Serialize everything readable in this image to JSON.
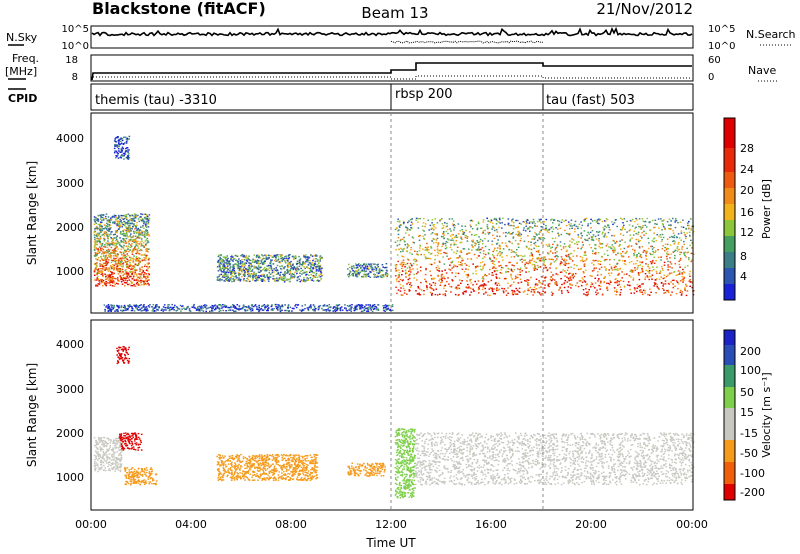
{
  "header": {
    "station": "Blackstone (fitACF)",
    "beam": "Beam 13",
    "date": "21/Nov/2012"
  },
  "noise_panel": {
    "left_label": "N.Sky",
    "right_label": "N.Search",
    "left_ticks": [
      "10^5",
      "10^0"
    ],
    "right_ticks": [
      "10^5",
      "10^0"
    ]
  },
  "freq_panel": {
    "left_label_1": "Freq.",
    "left_label_2": "[MHz]",
    "right_label": "Nave",
    "left_ticks": [
      "18",
      "8"
    ],
    "right_ticks": [
      "60",
      "0"
    ]
  },
  "cpid_panel": {
    "label": "CPID",
    "modes": [
      {
        "name": "themis (tau) -3310",
        "start_hour": 0,
        "end_hour": 12
      },
      {
        "name": "rbsp 200",
        "start_hour": 12,
        "end_hour": 18
      },
      {
        "name": "tau (fast) 503",
        "start_hour": 18,
        "end_hour": 24
      }
    ]
  },
  "chart_data": [
    {
      "type": "heatmap",
      "parameter": "Power",
      "ylabel": "Slant Range [km]",
      "ylim": [
        200,
        4600
      ],
      "yticks": [
        "1000",
        "2000",
        "3000",
        "4000"
      ],
      "xlim": [
        0,
        24
      ],
      "colorbar_label": "Power [dB]",
      "colorbar_ticks": [
        "4",
        "8",
        "12",
        "16",
        "20",
        "24",
        "28"
      ],
      "colors": [
        "#1a22d8",
        "#2e56b0",
        "#3c7e88",
        "#45a060",
        "#8cc63a",
        "#f2b21a",
        "#f08a18",
        "#ee5a10",
        "#e82a0a",
        "#e00000"
      ],
      "scatter_regions": [
        {
          "start_hour": 0.1,
          "end_hour": 2.3,
          "range_min": 800,
          "range_max": 2400,
          "level": 0.55
        },
        {
          "start_hour": 0.9,
          "end_hour": 1.5,
          "range_min": 3600,
          "range_max": 4100,
          "level": 0.1
        },
        {
          "start_hour": 5.0,
          "end_hour": 9.2,
          "range_min": 900,
          "range_max": 1500,
          "level": 0.3
        },
        {
          "start_hour": 10.2,
          "end_hour": 11.8,
          "range_min": 1000,
          "range_max": 1300,
          "level": 0.25
        },
        {
          "start_hour": 0.5,
          "end_hour": 12.0,
          "range_min": 250,
          "range_max": 400,
          "level": 0.1
        },
        {
          "start_hour": 12.1,
          "end_hour": 24.0,
          "range_min": 600,
          "range_max": 2300,
          "level": 0.6
        }
      ]
    },
    {
      "type": "heatmap",
      "parameter": "Velocity",
      "ylabel": "Slant Range [km]",
      "ylim": [
        200,
        4600
      ],
      "yticks": [
        "1000",
        "2000",
        "3000",
        "4000"
      ],
      "xlim": [
        0,
        24
      ],
      "xticks": [
        "00:00",
        "04:00",
        "08:00",
        "12:00",
        "16:00",
        "20:00",
        "00:00"
      ],
      "xlabel": "Time UT",
      "colorbar_label": "Velocity [m s⁻¹]",
      "colorbar_ticks": [
        "-200",
        "-100",
        "-50",
        "-15",
        "15",
        "50",
        "100",
        "200"
      ],
      "colors": [
        "#e00000",
        "#f0600a",
        "#f59a1a",
        "#c8c8c0",
        "#c8c8c0",
        "#7ed04a",
        "#3a9a6a",
        "#2a4eb8",
        "#1a22c8"
      ],
      "scatter_regions": [
        {
          "start_hour": 0.1,
          "end_hour": 1.2,
          "range_min": 1100,
          "range_max": 1900,
          "color": "#c8c8c0"
        },
        {
          "start_hour": 1.1,
          "end_hour": 2.0,
          "range_min": 1600,
          "range_max": 2000,
          "color": "#e00000"
        },
        {
          "start_hour": 1.0,
          "end_hour": 1.5,
          "range_min": 3600,
          "range_max": 4000,
          "color": "#e00000"
        },
        {
          "start_hour": 1.3,
          "end_hour": 2.6,
          "range_min": 800,
          "range_max": 1200,
          "color": "#f59a1a"
        },
        {
          "start_hour": 5.0,
          "end_hour": 9.0,
          "range_min": 900,
          "range_max": 1500,
          "color": "#f59a1a"
        },
        {
          "start_hour": 10.2,
          "end_hour": 11.7,
          "range_min": 1000,
          "range_max": 1300,
          "color": "#f59a1a"
        },
        {
          "start_hour": 12.1,
          "end_hour": 12.9,
          "range_min": 500,
          "range_max": 2100,
          "color": "#7ed04a"
        },
        {
          "start_hour": 12.9,
          "end_hour": 24.0,
          "range_min": 800,
          "range_max": 2000,
          "color": "#c8c8c0"
        }
      ]
    }
  ]
}
